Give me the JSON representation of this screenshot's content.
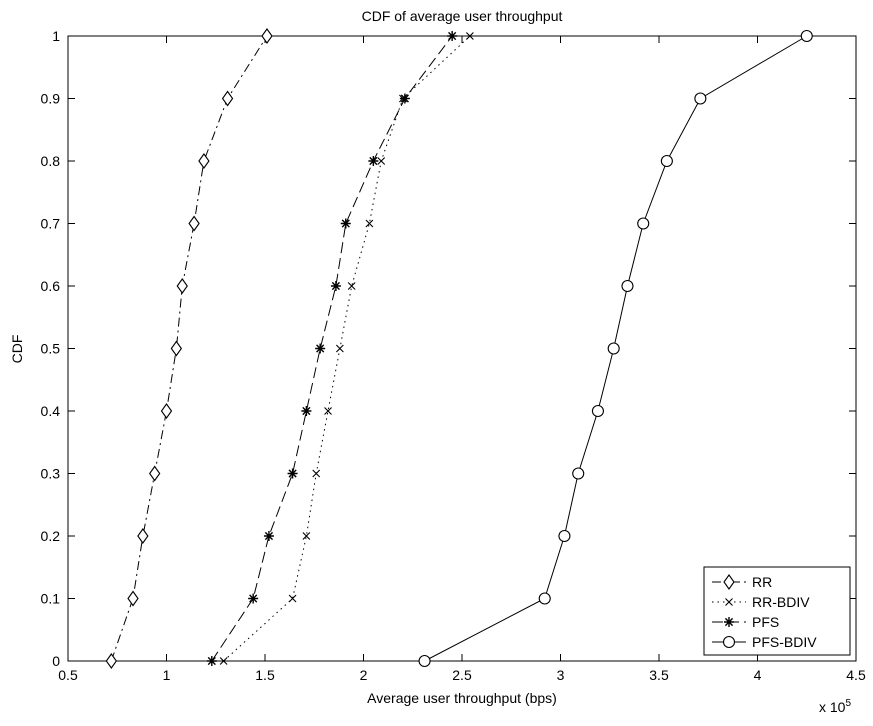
{
  "chart_data": {
    "type": "line",
    "title": "CDF of average user throughput",
    "xlabel": "Average user throughput (bps)",
    "ylabel": "CDF",
    "x_exponent_label": "x 10",
    "x_exponent_power": "5",
    "x_scale_factor": 100000,
    "xlim": [
      0.5,
      4.5
    ],
    "ylim": [
      0,
      1
    ],
    "xticks": [
      0.5,
      1,
      1.5,
      2,
      2.5,
      3,
      3.5,
      4,
      4.5
    ],
    "xtick_labels": [
      "0.5",
      "1",
      "1.5",
      "2",
      "2.5",
      "3",
      "3.5",
      "4",
      "4.5"
    ],
    "yticks": [
      0,
      0.1,
      0.2,
      0.3,
      0.4,
      0.5,
      0.6,
      0.7,
      0.8,
      0.9,
      1
    ],
    "ytick_labels": [
      "0",
      "0.1",
      "0.2",
      "0.3",
      "0.4",
      "0.5",
      "0.6",
      "0.7",
      "0.8",
      "0.9",
      "1"
    ],
    "grid": false,
    "legend_position": "bottom-right",
    "y": [
      0,
      0.1,
      0.2,
      0.3,
      0.4,
      0.5,
      0.6,
      0.7,
      0.8,
      0.9,
      1
    ],
    "series": [
      {
        "name": "RR",
        "marker": "diamond",
        "line_style": "dash-dot",
        "x": [
          0.72,
          0.83,
          0.88,
          0.94,
          1.0,
          1.05,
          1.08,
          1.14,
          1.19,
          1.31,
          1.51
        ]
      },
      {
        "name": "RR-BDIV",
        "marker": "x",
        "line_style": "dotted",
        "x": [
          1.29,
          1.64,
          1.71,
          1.76,
          1.82,
          1.88,
          1.94,
          2.03,
          2.09,
          2.2,
          2.54
        ]
      },
      {
        "name": "PFS",
        "marker": "star",
        "line_style": "dashed",
        "x": [
          1.23,
          1.44,
          1.52,
          1.64,
          1.71,
          1.78,
          1.86,
          1.91,
          2.05,
          2.21,
          2.45
        ]
      },
      {
        "name": "PFS-BDIV",
        "marker": "circle",
        "line_style": "solid",
        "x": [
          2.31,
          2.92,
          3.02,
          3.09,
          3.19,
          3.27,
          3.34,
          3.42,
          3.54,
          3.71,
          4.25
        ]
      }
    ]
  }
}
